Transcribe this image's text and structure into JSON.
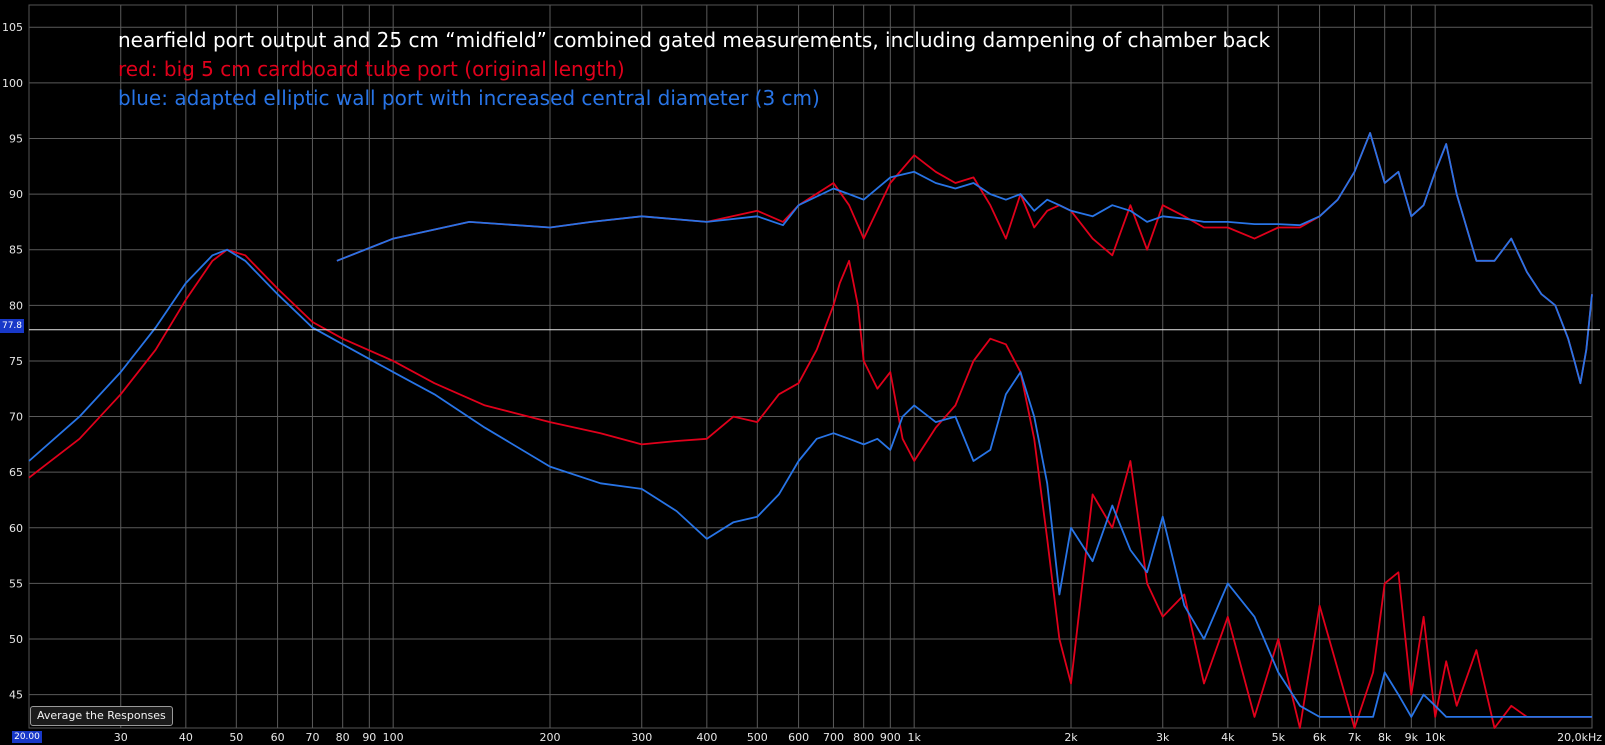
{
  "chart_data": {
    "type": "line",
    "x_scale": "log",
    "xlim": [
      20,
      20000
    ],
    "ylim": [
      42,
      107
    ],
    "grid": true,
    "legend_placement": "top-left",
    "annotations": [
      {
        "text": "nearfield port output and 25 cm “midfield” combined gated measurements, including dampening of chamber back",
        "color": "#ffffff"
      },
      {
        "text": "red: big 5 cm cardboard tube port (original length)",
        "color": "#e0001b"
      },
      {
        "text": "blue: adapted elliptic wall port with increased central diameter (3 cm)",
        "color": "#2874e6"
      }
    ],
    "y_ticks": [
      45,
      50,
      55,
      60,
      65,
      70,
      75,
      80,
      85,
      90,
      95,
      100,
      105
    ],
    "x_ticks": [
      {
        "v": 30,
        "label": "30"
      },
      {
        "v": 40,
        "label": "40"
      },
      {
        "v": 50,
        "label": "50"
      },
      {
        "v": 60,
        "label": "60"
      },
      {
        "v": 70,
        "label": "70"
      },
      {
        "v": 80,
        "label": "80"
      },
      {
        "v": 90,
        "label": "90"
      },
      {
        "v": 100,
        "label": "100"
      },
      {
        "v": 200,
        "label": "200"
      },
      {
        "v": 300,
        "label": "300"
      },
      {
        "v": 400,
        "label": "400"
      },
      {
        "v": 500,
        "label": "500"
      },
      {
        "v": 600,
        "label": "600"
      },
      {
        "v": 700,
        "label": "700"
      },
      {
        "v": 800,
        "label": "800"
      },
      {
        "v": 900,
        "label": "900"
      },
      {
        "v": 1000,
        "label": "1k"
      },
      {
        "v": 2000,
        "label": "2k"
      },
      {
        "v": 3000,
        "label": "3k"
      },
      {
        "v": 4000,
        "label": "4k"
      },
      {
        "v": 5000,
        "label": "5k"
      },
      {
        "v": 6000,
        "label": "6k"
      },
      {
        "v": 7000,
        "label": "7k"
      },
      {
        "v": 8000,
        "label": "8k"
      },
      {
        "v": 9000,
        "label": "9k"
      },
      {
        "v": 10000,
        "label": "10k"
      },
      {
        "v": 20000,
        "label": "20,0kHz"
      }
    ],
    "cursor_y": 77.8,
    "series": [
      {
        "color": "#e0001b",
        "x": [
          20,
          25,
          30,
          35,
          40,
          45,
          48,
          52,
          60,
          70,
          80,
          100,
          120,
          150,
          200,
          250,
          300,
          350,
          400,
          450,
          500,
          550,
          600,
          650,
          700,
          720,
          750,
          780,
          800,
          850,
          900,
          950,
          1000,
          1100,
          1200,
          1300,
          1400,
          1500,
          1600,
          1700,
          1800,
          1900,
          2000,
          2200,
          2400,
          2600,
          2800,
          3000,
          3300,
          3600,
          4000,
          4500,
          5000,
          5500,
          6000,
          7000,
          7600,
          8000,
          8500,
          9000,
          9500,
          10000,
          10500,
          11000,
          12000,
          13000,
          14000,
          15000,
          16000,
          17000,
          18000,
          18500,
          19000,
          19500,
          20000
        ],
        "values": [
          64.5,
          68,
          72,
          76,
          80.5,
          84,
          85,
          84.5,
          81.5,
          78.5,
          77,
          75,
          73,
          71,
          69.5,
          68.5,
          67.5,
          67.8,
          68,
          70,
          69.5,
          72,
          73,
          76,
          80,
          82,
          84,
          80,
          75,
          72.5,
          74,
          68,
          66,
          69,
          71,
          75,
          77,
          76.5,
          74,
          68,
          59,
          50,
          46,
          63,
          60,
          66,
          55,
          52,
          54,
          46,
          52,
          43,
          50,
          42,
          53,
          42,
          47,
          55,
          56,
          45,
          52,
          43,
          48,
          44,
          49,
          42,
          44,
          43,
          43,
          43,
          43,
          43,
          43,
          43,
          43
        ]
      },
      {
        "color": "#2874e6",
        "x": [
          20,
          25,
          30,
          35,
          40,
          45,
          48,
          52,
          60,
          70,
          80,
          100,
          120,
          150,
          200,
          250,
          300,
          350,
          400,
          450,
          500,
          550,
          600,
          650,
          700,
          750,
          800,
          850,
          900,
          950,
          1000,
          1100,
          1200,
          1300,
          1400,
          1500,
          1600,
          1700,
          1800,
          1900,
          2000,
          2200,
          2400,
          2600,
          2800,
          3000,
          3300,
          3600,
          4000,
          4500,
          5000,
          5500,
          6000,
          7000,
          7600,
          8000,
          8500,
          9000,
          9500,
          10000,
          10500,
          11000,
          12000,
          13000,
          14000,
          15000,
          16000,
          17000,
          18000,
          19000,
          20000
        ],
        "values": [
          66,
          70,
          74,
          78,
          82,
          84.5,
          85,
          84,
          81,
          78,
          76.5,
          74,
          72,
          69,
          65.5,
          64,
          63.5,
          61.5,
          59,
          60.5,
          61,
          63,
          66,
          68,
          68.5,
          68,
          67.5,
          68,
          67,
          70,
          71,
          69.5,
          70,
          66,
          67,
          72,
          74,
          70,
          64,
          54,
          60,
          57,
          62,
          58,
          56,
          61,
          53,
          50,
          55,
          52,
          47,
          44,
          43,
          43,
          43,
          47,
          45,
          43,
          45,
          44,
          43,
          43,
          43,
          43,
          43,
          43,
          43,
          43,
          43,
          43,
          43
        ]
      },
      {
        "color": "#e0001b",
        "x": [
          78,
          100,
          140,
          200,
          240,
          300,
          400,
          500,
          560,
          600,
          700,
          750,
          800,
          900,
          1000,
          1100,
          1200,
          1300,
          1400,
          1500,
          1600,
          1700,
          1800,
          1900,
          2000,
          2200,
          2400,
          2600,
          2800,
          3000,
          3300,
          3600,
          4000,
          4500,
          5000,
          5500,
          6000,
          6500,
          7000,
          7500,
          8000,
          8500,
          9000,
          9500,
          10000,
          10500,
          11000,
          12000,
          13000,
          14000,
          15000,
          16000,
          17000,
          18000,
          18500,
          19000,
          19500,
          20000
        ],
        "values": [
          84,
          86,
          87.5,
          87,
          87.5,
          88,
          87.5,
          88.5,
          87.5,
          89,
          91,
          89,
          86,
          91,
          93.5,
          92,
          91,
          91.5,
          89,
          86,
          90,
          87,
          88.5,
          89,
          88.5,
          86,
          84.5,
          89,
          85,
          89,
          88,
          87,
          87,
          86,
          87,
          87,
          88,
          89.5,
          92,
          95.5,
          91,
          92,
          88,
          89,
          92,
          94.5,
          90,
          84,
          84,
          86,
          83,
          81,
          80,
          77,
          75,
          73,
          76,
          81
        ]
      },
      {
        "color": "#2874e6",
        "x": [
          78,
          100,
          140,
          200,
          240,
          300,
          400,
          500,
          560,
          600,
          700,
          750,
          800,
          900,
          1000,
          1100,
          1200,
          1300,
          1400,
          1500,
          1600,
          1700,
          1800,
          1900,
          2000,
          2200,
          2400,
          2600,
          2800,
          3000,
          3300,
          3600,
          4000,
          4500,
          5000,
          5500,
          6000,
          6500,
          7000,
          7500,
          8000,
          8500,
          9000,
          9500,
          10000,
          10500,
          11000,
          12000,
          13000,
          14000,
          15000,
          16000,
          17000,
          18000,
          18500,
          19000,
          19500,
          20000
        ],
        "values": [
          84,
          86,
          87.5,
          87,
          87.5,
          88,
          87.5,
          88,
          87.2,
          89,
          90.5,
          90,
          89.5,
          91.5,
          92,
          91,
          90.5,
          91,
          90,
          89.5,
          90,
          88.5,
          89.5,
          89,
          88.5,
          88,
          89,
          88.5,
          87.5,
          88,
          87.8,
          87.5,
          87.5,
          87.3,
          87.3,
          87.2,
          88,
          89.5,
          92,
          95.5,
          91,
          92,
          88,
          89,
          92,
          94.5,
          90,
          84,
          84,
          86,
          83,
          81,
          80,
          77,
          75,
          73,
          76,
          81
        ]
      }
    ]
  },
  "ui": {
    "avg_button_label": "Average the Responses",
    "cursor_readout": "77.8",
    "x_cursor_readout": "20.00"
  }
}
